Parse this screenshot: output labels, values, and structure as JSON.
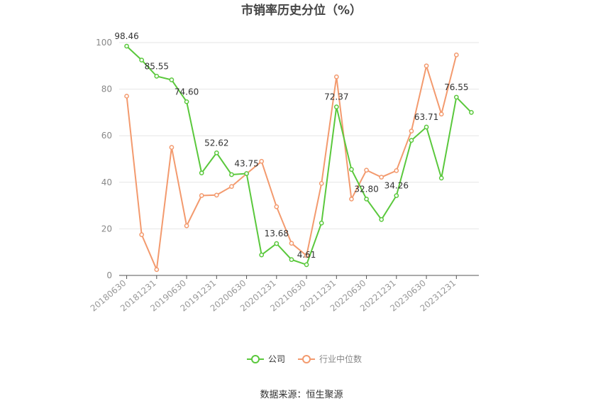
{
  "chart_data": {
    "type": "line",
    "title": "市销率历史分位（%）",
    "source": "数据来源：恒生聚源",
    "ylim": [
      0,
      100
    ],
    "y_ticks": [
      0,
      20,
      40,
      60,
      80,
      100
    ],
    "x": [
      "20180630",
      "20180930",
      "20181231",
      "20190331",
      "20190630",
      "20190930",
      "20191231",
      "20200331",
      "20200630",
      "20200930",
      "20201231",
      "20210331",
      "20210630",
      "20210930",
      "20211231",
      "20220331",
      "20220630",
      "20220930",
      "20221231",
      "20230331",
      "20230630",
      "20230930",
      "20231231",
      "20240331"
    ],
    "x_tick_labels": [
      "20180630",
      "20181231",
      "20190630",
      "20191231",
      "20200630",
      "20201231",
      "20210630",
      "20211231",
      "20220630",
      "20221231",
      "20230630",
      "20231231"
    ],
    "grid": true,
    "legend_position": "bottom",
    "series": [
      {
        "name": "公司",
        "color": "#5ac83c",
        "values": [
          98.46,
          92.5,
          85.55,
          84.0,
          74.6,
          44.0,
          52.62,
          43.3,
          43.75,
          8.8,
          13.68,
          6.8,
          4.61,
          22.5,
          72.37,
          45.5,
          32.8,
          24.0,
          34.26,
          58.0,
          63.71,
          41.8,
          76.55,
          70.0
        ],
        "labels": {
          "0": "98.46",
          "2": "85.55",
          "4": "74.60",
          "6": "52.62",
          "8": "43.75",
          "10": "13.68",
          "12": "4.61",
          "14": "72.37",
          "16": "32.80",
          "18": "34.26",
          "20": "63.71",
          "22": "76.55"
        }
      },
      {
        "name": "行业中位数",
        "color": "#f39a6e",
        "values": [
          77.0,
          17.5,
          2.5,
          55.0,
          21.3,
          34.3,
          34.5,
          38.2,
          43.7,
          49.0,
          29.5,
          13.8,
          8.5,
          39.5,
          85.3,
          32.8,
          45.2,
          42.2,
          45.0,
          62.0,
          90.0,
          69.3,
          94.7,
          null
        ]
      }
    ]
  }
}
